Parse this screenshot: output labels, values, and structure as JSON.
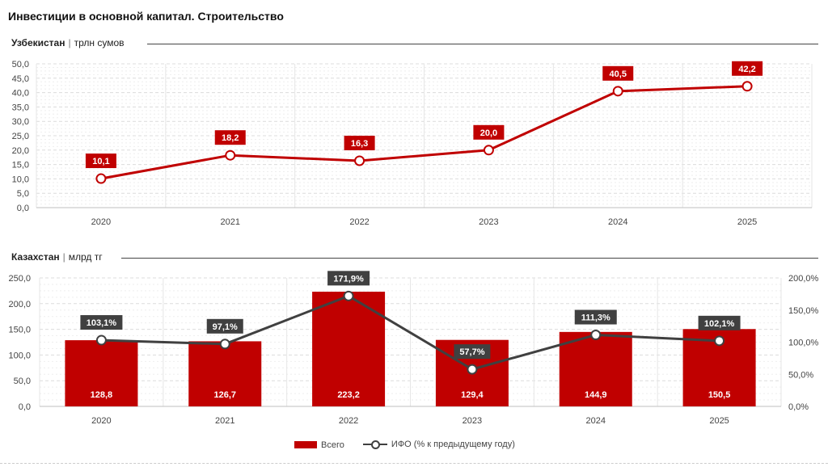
{
  "title": "Инвестиции в основной капитал. Строительство",
  "colors": {
    "accent": "#c00000",
    "line_dark": "#404040",
    "label_dark": "#404040"
  },
  "chart_data": [
    {
      "type": "line",
      "country": "Узбекистан",
      "unit": "трлн сумов",
      "categories": [
        "2020",
        "2021",
        "2022",
        "2023",
        "2024",
        "2025"
      ],
      "series": [
        {
          "values": [
            10.1,
            18.2,
            16.3,
            20.0,
            40.5,
            42.2
          ],
          "labels": [
            "10,1",
            "18,2",
            "16,3",
            "20,0",
            "40,5",
            "42,2"
          ]
        }
      ],
      "ylim": [
        0,
        50
      ],
      "yticks": [
        "0,0",
        "5,0",
        "10,0",
        "15,0",
        "20,0",
        "25,0",
        "30,0",
        "35,0",
        "40,0",
        "45,0",
        "50,0"
      ],
      "grid": true
    },
    {
      "type": "bar",
      "country": "Казахстан",
      "unit": "млрд тг",
      "categories": [
        "2020",
        "2021",
        "2022",
        "2023",
        "2024",
        "2025"
      ],
      "series": [
        {
          "name": "Всего",
          "type": "bar",
          "axis": "left",
          "values": [
            128.8,
            126.7,
            223.2,
            129.4,
            144.9,
            150.5
          ],
          "labels": [
            "128,8",
            "126,7",
            "223,2",
            "129,4",
            "144,9",
            "150,5"
          ]
        },
        {
          "name": "ИФО (% к предыдущему году)",
          "type": "line",
          "axis": "right",
          "values": [
            103.1,
            97.1,
            171.9,
            57.7,
            111.3,
            102.1
          ],
          "labels": [
            "103,1%",
            "97,1%",
            "171,9%",
            "57,7%",
            "111,3%",
            "102,1%"
          ]
        }
      ],
      "ylim": [
        0,
        250
      ],
      "yticks": [
        "0,0",
        "50,0",
        "100,0",
        "150,0",
        "200,0",
        "250,0"
      ],
      "y2lim": [
        0,
        200
      ],
      "y2ticks": [
        "0,0%",
        "50,0%",
        "100,0%",
        "150,0%",
        "200,0%"
      ],
      "legend": "bottom",
      "grid": true
    }
  ]
}
